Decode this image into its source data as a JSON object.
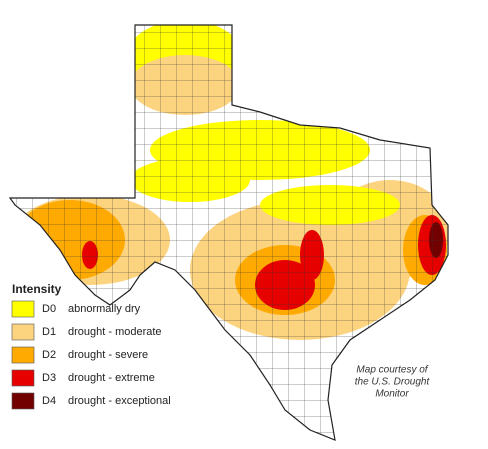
{
  "legend": {
    "title": "Intensity",
    "items": [
      {
        "code": "D0",
        "label": "abnormally dry",
        "color": "#ffff00"
      },
      {
        "code": "D1",
        "label": "drought - moderate",
        "color": "#fcd37f"
      },
      {
        "code": "D2",
        "label": "drought - severe",
        "color": "#ffaa00"
      },
      {
        "code": "D3",
        "label": "drought - extreme",
        "color": "#e60000"
      },
      {
        "code": "D4",
        "label": "drought - exceptional",
        "color": "#730000"
      }
    ]
  },
  "credit": [
    "Map courtesy of",
    "the U.S. Drought",
    "Monitor"
  ]
}
